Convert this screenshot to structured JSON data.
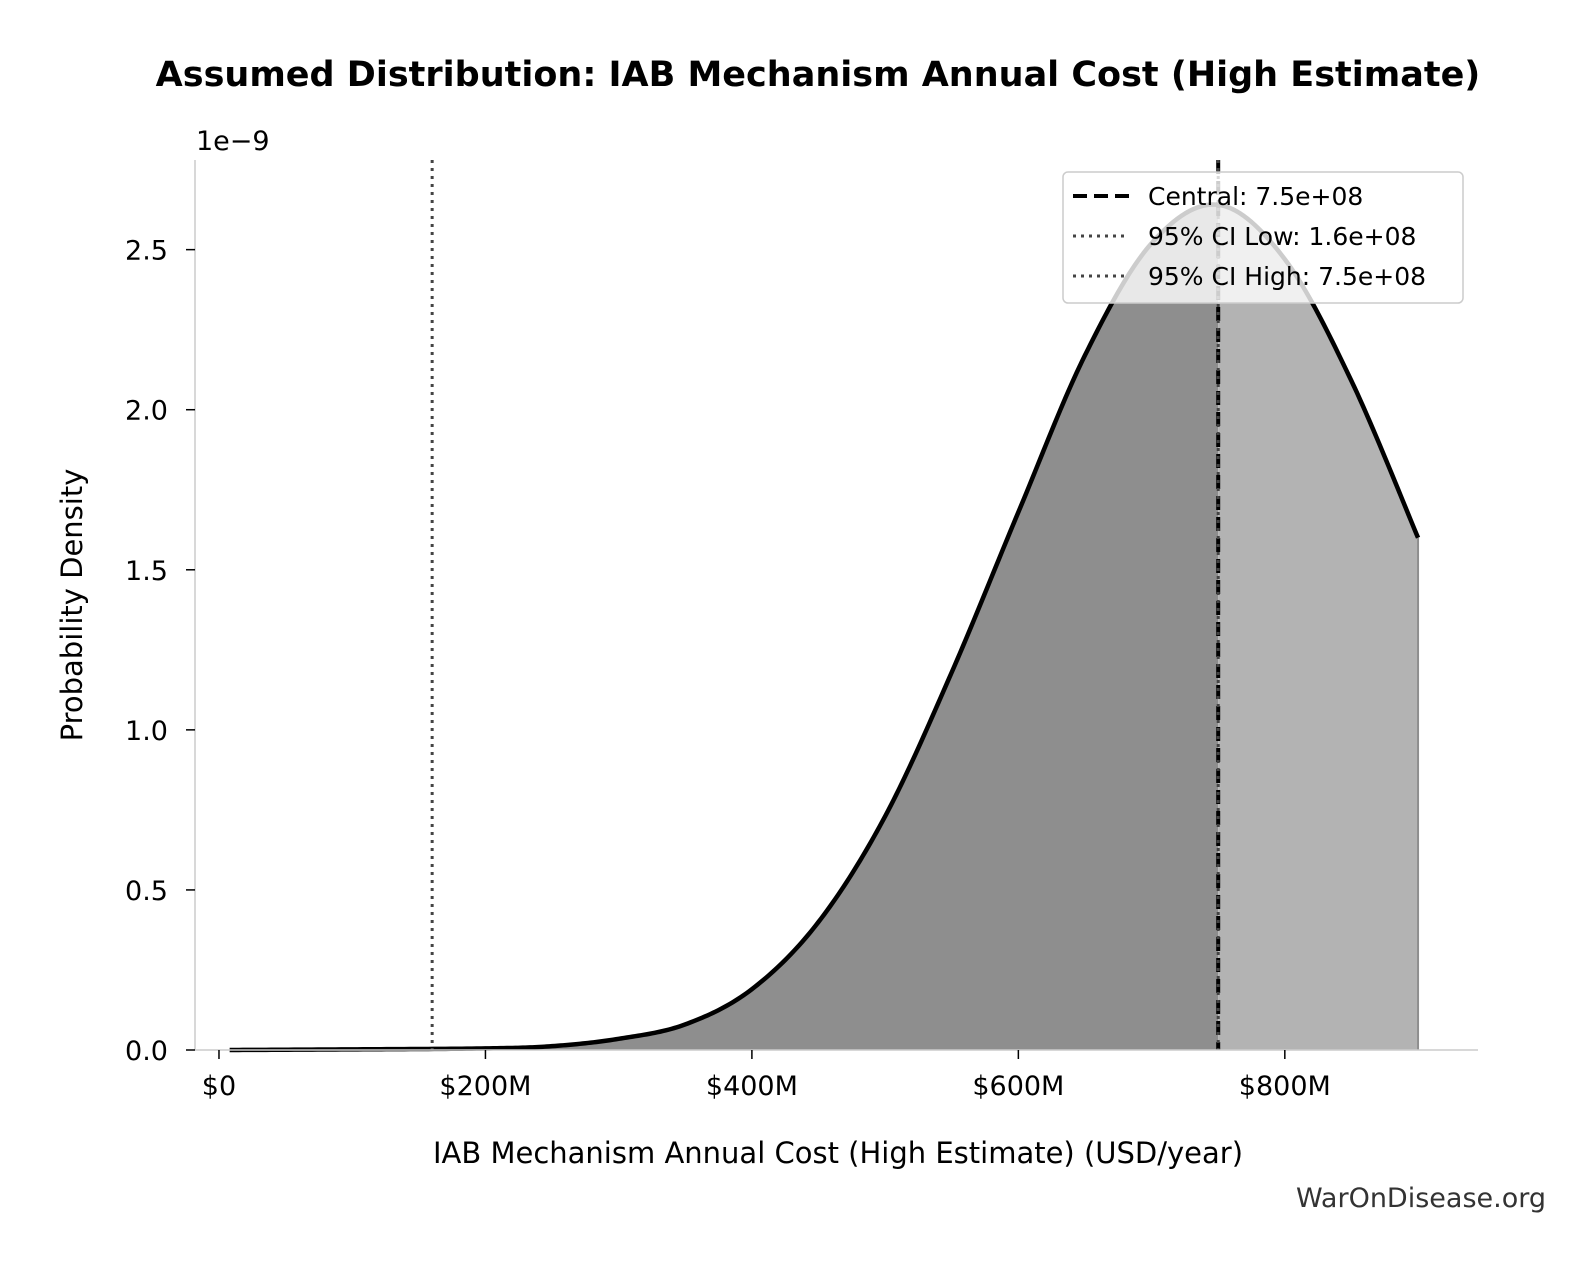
{
  "chart_data": {
    "type": "area",
    "title": "Assumed Distribution: IAB Mechanism Annual Cost (High Estimate)",
    "xlabel": "IAB Mechanism Annual Cost (High Estimate) (USD/year)",
    "ylabel": "Probability Density",
    "y_offset_label": "1e−9",
    "xlim": [
      -18000000,
      945000000
    ],
    "ylim": [
      0,
      2.78
    ],
    "x_ticks": [
      0,
      200000000,
      400000000,
      600000000,
      800000000
    ],
    "x_tick_labels": [
      "$0",
      "$200M",
      "$400M",
      "$600M",
      "$800M"
    ],
    "y_ticks": [
      0.0,
      0.5,
      1.0,
      1.5,
      2.0,
      2.5
    ],
    "y_tick_labels": [
      "0.0",
      "0.5",
      "1.0",
      "1.5",
      "2.0",
      "2.5"
    ],
    "series": [
      {
        "x": [
          8000000,
          100000000,
          200000000,
          250000000,
          300000000,
          350000000,
          400000000,
          450000000,
          500000000,
          550000000,
          600000000,
          650000000,
          700000000,
          750000000,
          800000000,
          850000000,
          900000000
        ],
        "y": [
          0.0,
          0.002,
          0.005,
          0.012,
          0.035,
          0.08,
          0.19,
          0.4,
          0.73,
          1.18,
          1.68,
          2.17,
          2.52,
          2.64,
          2.47,
          2.09,
          1.6
        ]
      }
    ],
    "vlines": [
      {
        "name": "Central: 7.5e+08",
        "x": 750000000,
        "style": "dashed",
        "color": "#000000"
      },
      {
        "name": "95% CI Low: 1.6e+08",
        "x": 160000000,
        "style": "dotted",
        "color": "#444444"
      },
      {
        "name": "95% CI High: 7.5e+08",
        "x": 750000000,
        "style": "dotted",
        "color": "#444444"
      }
    ],
    "shading": {
      "split_x": 750000000,
      "left_color": "#8e8e8e",
      "right_color": "#b3b3b3"
    },
    "legend_position": "upper right",
    "grid": false
  },
  "watermark": "WarOnDisease.org"
}
